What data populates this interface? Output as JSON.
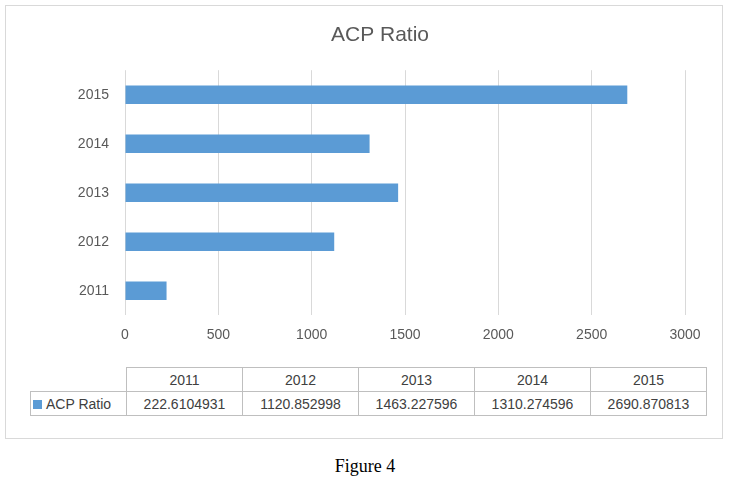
{
  "chart_data": {
    "type": "bar",
    "title": "ACP Ratio",
    "orientation": "horizontal",
    "categories": [
      "2011",
      "2012",
      "2013",
      "2014",
      "2015"
    ],
    "series": [
      {
        "name": "ACP Ratio",
        "color": "#5b9bd5",
        "values": [
          222.6104931,
          1120.852998,
          1463.227596,
          1310.274596,
          2690.870813
        ]
      }
    ],
    "xlim": [
      0,
      3000
    ],
    "xticks": [
      0,
      500,
      1000,
      1500,
      2000,
      2500,
      3000
    ],
    "grid": true
  },
  "caption": "Figure 4"
}
